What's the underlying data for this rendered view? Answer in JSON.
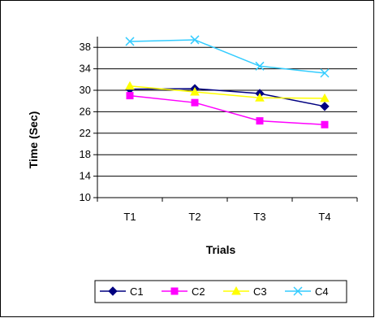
{
  "chart_data": {
    "type": "line",
    "categories": [
      "T1",
      "T2",
      "T3",
      "T4"
    ],
    "xlabel": "Trials",
    "ylabel": "Time (Sec)",
    "ylim": [
      10,
      40
    ],
    "yticks": [
      10,
      14,
      18,
      22,
      26,
      30,
      34,
      38
    ],
    "grid": "horizontal",
    "legend_position": "bottom",
    "series": [
      {
        "name": "C1",
        "values": [
          30.2,
          30.3,
          29.4,
          27.0
        ],
        "color": "#000080",
        "marker": "diamond"
      },
      {
        "name": "C2",
        "values": [
          29.0,
          27.7,
          24.3,
          23.6
        ],
        "color": "#ff00ff",
        "marker": "square"
      },
      {
        "name": "C3",
        "values": [
          30.8,
          29.7,
          28.6,
          28.5
        ],
        "color": "#ffff00",
        "marker": "triangle"
      },
      {
        "name": "C4",
        "values": [
          39.1,
          39.4,
          34.5,
          33.2
        ],
        "color": "#33ccff",
        "marker": "x"
      }
    ]
  }
}
